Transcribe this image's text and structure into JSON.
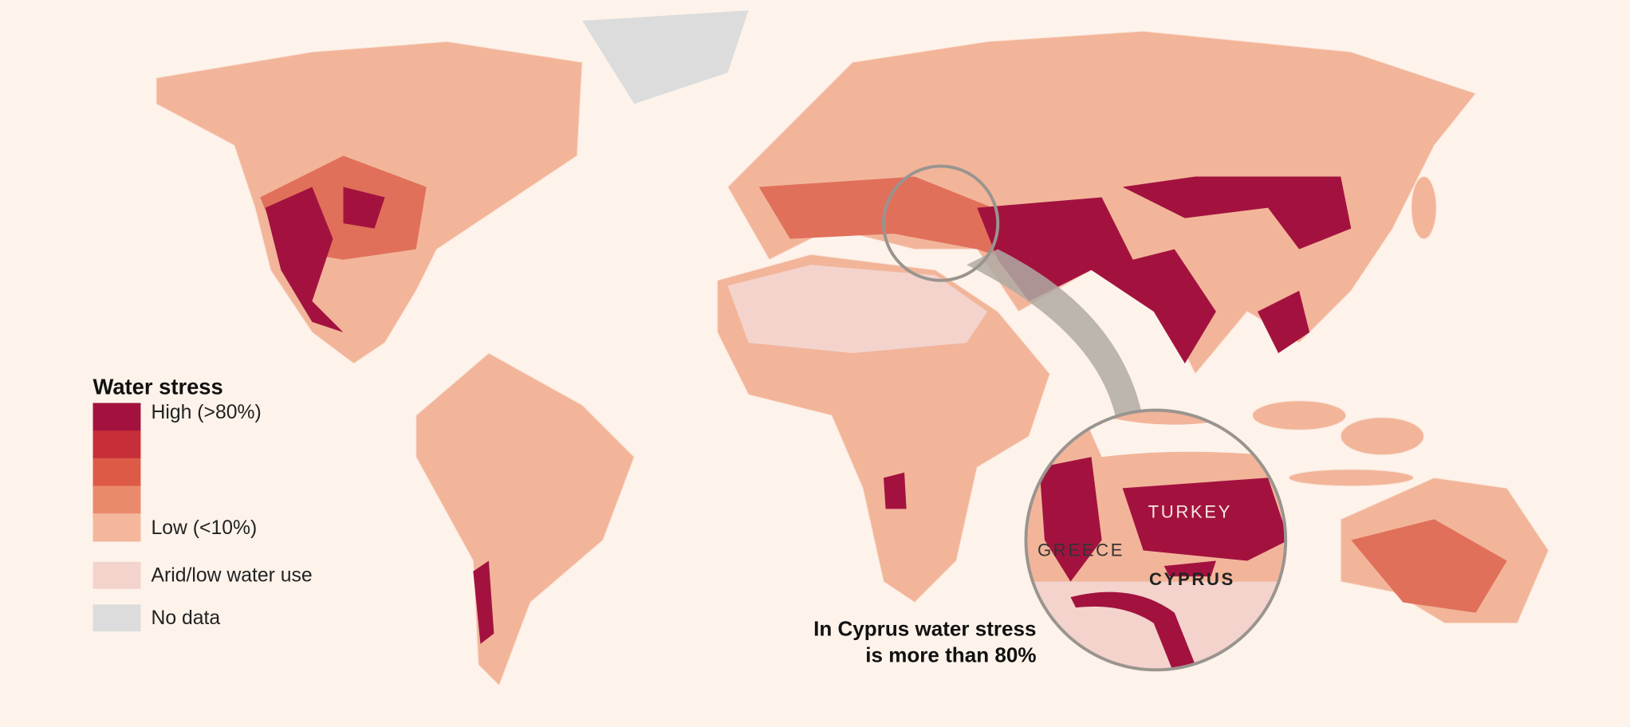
{
  "legend": {
    "title": "Water stress",
    "scale": {
      "colors": [
        "#a3123f",
        "#c62f3a",
        "#dd5a47",
        "#ea8a6d",
        "#f4b79c"
      ],
      "high_label": "High (>80%)",
      "low_label": "Low (<10%)"
    },
    "other": [
      {
        "label": "Arid/low water use",
        "color": "#f3d3cc"
      },
      {
        "label": "No data",
        "color": "#dcdcdc"
      }
    ]
  },
  "map_labels": [
    "TURKEY",
    "GREECE",
    "CYPRUS"
  ],
  "annotation": {
    "lines": [
      "In Cyprus water stress",
      "is more than 80%"
    ]
  }
}
